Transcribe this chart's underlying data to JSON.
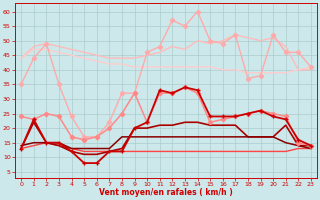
{
  "background_color": "#cce8ea",
  "grid_color": "#aacccc",
  "xlabel": "Vent moyen/en rafales ( km/h )",
  "xlim": [
    -0.5,
    23.5
  ],
  "ylim": [
    3,
    63
  ],
  "yticks": [
    5,
    10,
    15,
    20,
    25,
    30,
    35,
    40,
    45,
    50,
    55,
    60
  ],
  "xticks": [
    0,
    1,
    2,
    3,
    4,
    5,
    6,
    7,
    8,
    9,
    10,
    11,
    12,
    13,
    14,
    15,
    16,
    17,
    18,
    19,
    20,
    21,
    22,
    23
  ],
  "series": [
    {
      "x": [
        0,
        1,
        2,
        3,
        4,
        5,
        6,
        7,
        8,
        9,
        10,
        11,
        12,
        13,
        14,
        15,
        16,
        17,
        18,
        19,
        20,
        21,
        22,
        23
      ],
      "y": [
        44,
        48,
        49,
        48,
        47,
        46,
        45,
        44,
        44,
        44,
        45,
        46,
        48,
        47,
        50,
        49,
        50,
        52,
        51,
        50,
        51,
        48,
        40,
        40
      ],
      "color": "#ffbbbb",
      "lw": 1.0,
      "marker": null,
      "zorder": 2
    },
    {
      "x": [
        0,
        1,
        2,
        3,
        4,
        5,
        6,
        7,
        8,
        9,
        10,
        11,
        12,
        13,
        14,
        15,
        16,
        17,
        18,
        19,
        20,
        21,
        22,
        23
      ],
      "y": [
        35,
        44,
        49,
        35,
        24,
        17,
        17,
        22,
        32,
        32,
        46,
        48,
        57,
        55,
        60,
        50,
        49,
        52,
        37,
        38,
        52,
        46,
        46,
        41
      ],
      "color": "#ffaaaa",
      "lw": 1.0,
      "marker": "D",
      "markersize": 2.2,
      "zorder": 3
    },
    {
      "x": [
        0,
        1,
        2,
        3,
        4,
        5,
        6,
        7,
        8,
        9,
        10,
        11,
        12,
        13,
        14,
        15,
        16,
        17,
        18,
        19,
        20,
        21,
        22,
        23
      ],
      "y": [
        44,
        47,
        47,
        46,
        45,
        44,
        43,
        42,
        42,
        41,
        41,
        41,
        41,
        41,
        41,
        41,
        40,
        40,
        39,
        39,
        39,
        39,
        40,
        41
      ],
      "color": "#ffcccc",
      "lw": 1.0,
      "marker": null,
      "zorder": 2
    },
    {
      "x": [
        0,
        1,
        2,
        3,
        4,
        5,
        6,
        7,
        8,
        9,
        10,
        11,
        12,
        13,
        14,
        15,
        16,
        17,
        18,
        19,
        20,
        21,
        22,
        23
      ],
      "y": [
        24,
        23,
        25,
        24,
        17,
        16,
        17,
        20,
        25,
        32,
        22,
        32,
        32,
        34,
        32,
        22,
        23,
        24,
        25,
        26,
        25,
        24,
        15,
        14
      ],
      "color": "#ff8888",
      "lw": 1.1,
      "marker": "D",
      "markersize": 2.2,
      "zorder": 4
    },
    {
      "x": [
        0,
        1,
        2,
        3,
        4,
        5,
        6,
        7,
        8,
        9,
        10,
        11,
        12,
        13,
        14,
        15,
        16,
        17,
        18,
        19,
        20,
        21,
        22,
        23
      ],
      "y": [
        13,
        23,
        15,
        15,
        12,
        8,
        8,
        12,
        12,
        20,
        22,
        33,
        32,
        34,
        33,
        24,
        24,
        24,
        25,
        26,
        24,
        23,
        16,
        14
      ],
      "color": "#cc0000",
      "lw": 1.3,
      "marker": "+",
      "markersize": 3.5,
      "zorder": 5
    },
    {
      "x": [
        0,
        1,
        2,
        3,
        4,
        5,
        6,
        7,
        8,
        9,
        10,
        11,
        12,
        13,
        14,
        15,
        16,
        17,
        18,
        19,
        20,
        21,
        22,
        23
      ],
      "y": [
        13,
        22,
        15,
        14,
        12,
        11,
        11,
        12,
        13,
        20,
        20,
        21,
        21,
        22,
        22,
        21,
        21,
        21,
        17,
        17,
        17,
        21,
        14,
        14
      ],
      "color": "#aa0000",
      "lw": 1.2,
      "marker": null,
      "zorder": 3
    },
    {
      "x": [
        0,
        1,
        2,
        3,
        4,
        5,
        6,
        7,
        8,
        9,
        10,
        11,
        12,
        13,
        14,
        15,
        16,
        17,
        18,
        19,
        20,
        21,
        22,
        23
      ],
      "y": [
        13,
        14,
        15,
        14,
        13,
        12,
        12,
        12,
        12,
        12,
        12,
        12,
        12,
        12,
        12,
        12,
        12,
        12,
        12,
        12,
        12,
        12,
        13,
        13
      ],
      "color": "#ff4444",
      "lw": 1.0,
      "marker": null,
      "zorder": 2
    },
    {
      "x": [
        0,
        1,
        2,
        3,
        4,
        5,
        6,
        7,
        8,
        9,
        10,
        11,
        12,
        13,
        14,
        15,
        16,
        17,
        18,
        19,
        20,
        21,
        22,
        23
      ],
      "y": [
        14,
        15,
        15,
        15,
        13,
        13,
        13,
        13,
        17,
        17,
        17,
        17,
        17,
        17,
        17,
        17,
        17,
        17,
        17,
        17,
        17,
        15,
        14,
        13
      ],
      "color": "#880000",
      "lw": 1.1,
      "marker": null,
      "zorder": 3
    }
  ]
}
